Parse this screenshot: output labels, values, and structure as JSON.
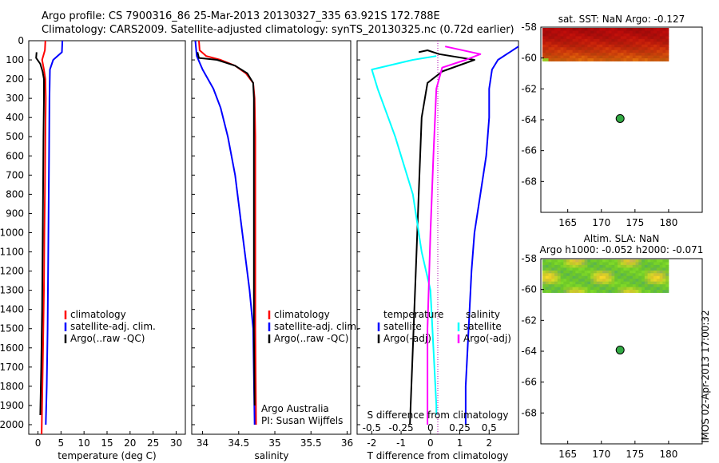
{
  "header": {
    "line1": "Argo profile: CS 7900316_86 25-Mar-2013 20130327_335 63.921S 172.788E",
    "line2": "Climatology: CARS2009. Satellite-adjusted climatology: synTS_20130325.nc (0.72d earlier)"
  },
  "side_stamp": "IMOS 02-Apr-2013 17:00:32",
  "colors": {
    "climatology": "#ff0000",
    "satellite": "#0000ff",
    "argo": "#000000",
    "salinity_satellite": "#00ffff",
    "salinity_argo": "#ff00ff"
  },
  "chart_data": [
    {
      "type": "line",
      "name": "temperature-panel",
      "xlabel": "temperature (deg C)",
      "ylabel": "",
      "xlim": [
        -2,
        32
      ],
      "ylim": [
        2050,
        0
      ],
      "xticks": [
        0,
        5,
        10,
        15,
        20,
        25,
        30
      ],
      "yticks": [
        0,
        100,
        200,
        300,
        400,
        500,
        600,
        700,
        800,
        900,
        1000,
        1100,
        1200,
        1300,
        1400,
        1500,
        1600,
        1700,
        1800,
        1900,
        2000
      ],
      "legend": [
        "climatology",
        "satellite-adj. clim.",
        "Argo(..raw -QC)"
      ],
      "legend_position": "bottom-center",
      "series": [
        {
          "name": "climatology",
          "color": "#ff0000",
          "points": [
            [
              1.6,
              0
            ],
            [
              1.5,
              50
            ],
            [
              0.9,
              100
            ],
            [
              1.3,
              150
            ],
            [
              1.6,
              200
            ],
            [
              1.7,
              300
            ],
            [
              1.6,
              500
            ],
            [
              1.5,
              800
            ],
            [
              1.4,
              1000
            ],
            [
              1.3,
              1300
            ],
            [
              1.1,
              1600
            ],
            [
              0.9,
              1900
            ],
            [
              0.8,
              2050
            ]
          ]
        },
        {
          "name": "satellite-adj. clim.",
          "color": "#0000ff",
          "points": [
            [
              5.3,
              0
            ],
            [
              5.2,
              60
            ],
            [
              3.3,
              100
            ],
            [
              2.6,
              150
            ],
            [
              2.5,
              300
            ],
            [
              2.4,
              600
            ],
            [
              2.3,
              900
            ],
            [
              2.2,
              1200
            ],
            [
              2.1,
              1500
            ],
            [
              1.9,
              1800
            ],
            [
              1.7,
              2000
            ]
          ]
        },
        {
          "name": "Argo(..raw -QC)",
          "color": "#000000",
          "points": [
            [
              -0.3,
              60
            ],
            [
              -0.4,
              90
            ],
            [
              0.5,
              120
            ],
            [
              1.0,
              160
            ],
            [
              1.3,
              200
            ],
            [
              1.3,
              300
            ],
            [
              1.2,
              500
            ],
            [
              1.1,
              800
            ],
            [
              1.0,
              1100
            ],
            [
              0.9,
              1400
            ],
            [
              0.7,
              1700
            ],
            [
              0.5,
              1950
            ]
          ]
        }
      ]
    },
    {
      "type": "line",
      "name": "salinity-panel",
      "xlabel": "salinity",
      "ylabel": "",
      "xlim": [
        33.85,
        36.05
      ],
      "ylim": [
        2050,
        0
      ],
      "xticks": [
        34,
        34.5,
        35,
        35.5,
        36
      ],
      "legend": [
        "climatology",
        "satellite-adj. clim.",
        "Argo(..raw -QC)"
      ],
      "legend_position": "bottom-center",
      "annotations": [
        "Argo Australia",
        "PI: Susan Wijffels"
      ],
      "series": [
        {
          "name": "climatology",
          "color": "#ff0000",
          "points": [
            [
              33.95,
              0
            ],
            [
              33.96,
              50
            ],
            [
              34.05,
              80
            ],
            [
              34.25,
              100
            ],
            [
              34.45,
              130
            ],
            [
              34.6,
              170
            ],
            [
              34.7,
              220
            ],
            [
              34.72,
              300
            ],
            [
              34.73,
              500
            ],
            [
              34.73,
              1000
            ],
            [
              34.73,
              1500
            ],
            [
              34.74,
              2000
            ]
          ]
        },
        {
          "name": "satellite-adj. clim.",
          "color": "#0000ff",
          "points": [
            [
              33.9,
              0
            ],
            [
              33.92,
              80
            ],
            [
              34.0,
              150
            ],
            [
              34.15,
              250
            ],
            [
              34.25,
              350
            ],
            [
              34.35,
              500
            ],
            [
              34.45,
              700
            ],
            [
              34.55,
              1000
            ],
            [
              34.65,
              1300
            ],
            [
              34.7,
              1500
            ],
            [
              34.72,
              2000
            ]
          ]
        },
        {
          "name": "Argo(..raw -QC)",
          "color": "#000000",
          "points": [
            [
              33.93,
              60
            ],
            [
              33.95,
              90
            ],
            [
              34.2,
              100
            ],
            [
              34.45,
              130
            ],
            [
              34.62,
              170
            ],
            [
              34.7,
              220
            ],
            [
              34.71,
              300
            ],
            [
              34.71,
              600
            ],
            [
              34.71,
              1000
            ],
            [
              34.71,
              1500
            ],
            [
              34.72,
              1900
            ]
          ]
        }
      ]
    },
    {
      "type": "line",
      "name": "difference-panel",
      "xlabel": "T difference from climatology",
      "xlabel_top": "S difference from climatology",
      "xlim": [
        -2.5,
        3.0
      ],
      "ylim": [
        2050,
        0
      ],
      "xticks": [
        -2,
        -1,
        0,
        1,
        2
      ],
      "s_xticks": [
        -0.5,
        -0.25,
        0,
        0.25,
        0.5
      ],
      "legend_headers": [
        "temperature",
        "salinity"
      ],
      "legend": [
        "satellite",
        "Argo(-adj)",
        "satellite",
        "Argo(-adj)"
      ],
      "legend_position": "bottom-center",
      "series": [
        {
          "name": "temperature satellite",
          "color": "#0000ff",
          "points": [
            [
              3.0,
              30
            ],
            [
              2.7,
              60
            ],
            [
              2.3,
              100
            ],
            [
              2.1,
              150
            ],
            [
              2.0,
              250
            ],
            [
              2.0,
              400
            ],
            [
              1.9,
              600
            ],
            [
              1.7,
              800
            ],
            [
              1.5,
              1000
            ],
            [
              1.4,
              1200
            ],
            [
              1.3,
              1500
            ],
            [
              1.2,
              1800
            ],
            [
              1.2,
              2000
            ]
          ]
        },
        {
          "name": "temperature Argo(-adj)",
          "color": "#000000",
          "points": [
            [
              -0.4,
              60
            ],
            [
              -0.1,
              50
            ],
            [
              0.3,
              70
            ],
            [
              1.5,
              100
            ],
            [
              0.4,
              160
            ],
            [
              -0.1,
              220
            ],
            [
              -0.3,
              400
            ],
            [
              -0.4,
              800
            ],
            [
              -0.5,
              1200
            ],
            [
              -0.6,
              1600
            ],
            [
              -0.7,
              2000
            ]
          ]
        },
        {
          "name": "salinity satellite",
          "color": "#00ffff",
          "points": [
            [
              0.2,
              80
            ],
            [
              -0.6,
              100
            ],
            [
              -2.0,
              150
            ],
            [
              -1.8,
              250
            ],
            [
              -1.2,
              500
            ],
            [
              -0.6,
              800
            ],
            [
              -0.3,
              1100
            ],
            [
              0.0,
              1300
            ],
            [
              0.1,
              1600
            ],
            [
              0.2,
              1900
            ],
            [
              0.2,
              1950
            ]
          ]
        },
        {
          "name": "salinity Argo(-adj)",
          "color": "#ff00ff",
          "points": [
            [
              0.5,
              30
            ],
            [
              1.7,
              70
            ],
            [
              1.2,
              100
            ],
            [
              0.4,
              140
            ],
            [
              0.2,
              250
            ],
            [
              0.1,
              600
            ],
            [
              0.0,
              1000
            ],
            [
              -0.1,
              1500
            ],
            [
              -0.1,
              2000
            ]
          ]
        }
      ]
    },
    {
      "type": "heatmap",
      "name": "sst-map",
      "title": "sat. SST: NaN Argo: -0.127",
      "xlim": [
        161,
        185
      ],
      "ylim": [
        -70,
        -58
      ],
      "xticks": [
        165,
        170,
        175,
        180
      ],
      "yticks": [
        -58,
        -60,
        -62,
        -64,
        -66,
        -68
      ],
      "marker": {
        "lon": 172.788,
        "lat": -63.921,
        "color": "#33aa44"
      }
    },
    {
      "type": "heatmap",
      "name": "sla-map",
      "title": "Altim. SLA: NaN",
      "subtitle": "Argo h1000: -0.052 h2000: -0.071",
      "xlim": [
        161,
        185
      ],
      "ylim": [
        -70,
        -58
      ],
      "xticks": [
        165,
        170,
        175,
        180
      ],
      "yticks": [
        -58,
        -60,
        -62,
        -64,
        -66,
        -68
      ],
      "marker": {
        "lon": 172.788,
        "lat": -63.921,
        "color": "#33aa44"
      }
    }
  ]
}
